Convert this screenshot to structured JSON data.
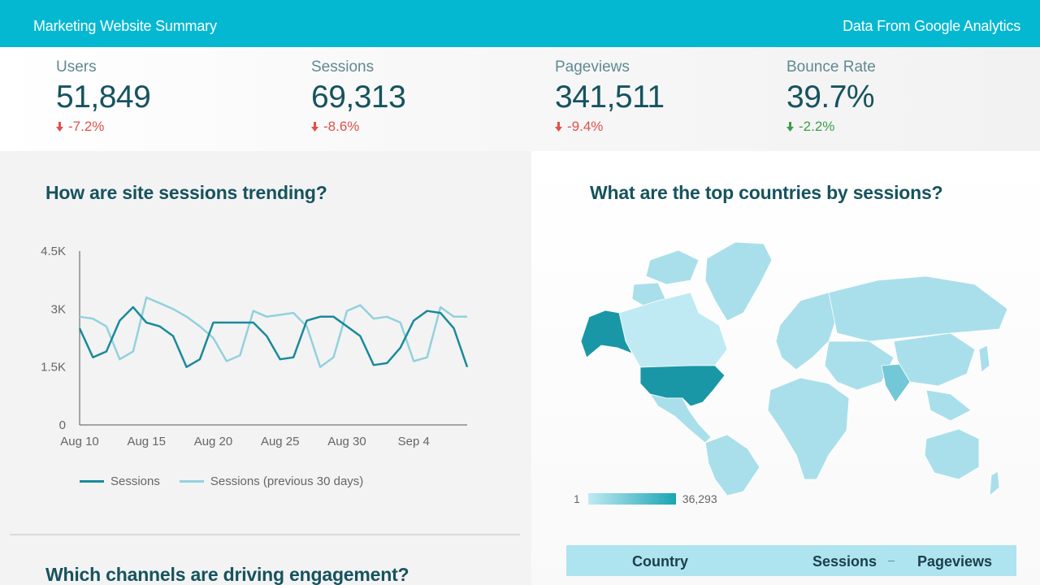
{
  "header": {
    "title": "Marketing Website Summary",
    "source": "Data From Google Analytics"
  },
  "kpis": [
    {
      "label": "Users",
      "value": "51,849",
      "delta": "-7.2%",
      "direction": "down",
      "color": "#e0504a"
    },
    {
      "label": "Sessions",
      "value": "69,313",
      "delta": "-8.6%",
      "direction": "down",
      "color": "#e0504a"
    },
    {
      "label": "Pageviews",
      "value": "341,511",
      "delta": "-9.4%",
      "direction": "down",
      "color": "#e0504a"
    },
    {
      "label": "Bounce Rate",
      "value": "39.7%",
      "delta": "-2.2%",
      "direction": "down",
      "color": "#3d9c4a"
    }
  ],
  "sessions_section": {
    "title": "How are site sessions trending?"
  },
  "countries_section": {
    "title": "What are the top countries by sessions?"
  },
  "channels_section": {
    "title": "Which channels are driving engagement?"
  },
  "chart_data": {
    "type": "line",
    "title": "",
    "xlabel": "",
    "ylabel": "",
    "x_ticks": [
      "Aug 10",
      "Aug 15",
      "Aug 20",
      "Aug 25",
      "Aug 30",
      "Sep 4"
    ],
    "y_ticks": [
      "0",
      "1.5K",
      "3K",
      "4.5K"
    ],
    "ylim": [
      0,
      4500
    ],
    "x": [
      "Aug 10",
      "Aug 11",
      "Aug 12",
      "Aug 13",
      "Aug 14",
      "Aug 15",
      "Aug 16",
      "Aug 17",
      "Aug 18",
      "Aug 19",
      "Aug 20",
      "Aug 21",
      "Aug 22",
      "Aug 23",
      "Aug 24",
      "Aug 25",
      "Aug 26",
      "Aug 27",
      "Aug 28",
      "Aug 29",
      "Aug 30",
      "Aug 31",
      "Sep 1",
      "Sep 2",
      "Sep 3",
      "Sep 4",
      "Sep 5",
      "Sep 6",
      "Sep 7",
      "Sep 8"
    ],
    "grid": false,
    "legend": "bottom",
    "series": [
      {
        "name": "Sessions",
        "color": "#1a8a9a",
        "values": [
          2500,
          1750,
          1900,
          2700,
          3050,
          2650,
          2550,
          2300,
          1500,
          1700,
          2650,
          2650,
          2650,
          2650,
          2300,
          1700,
          1750,
          2700,
          2800,
          2800,
          2550,
          2300,
          1550,
          1600,
          2000,
          2700,
          2950,
          2900,
          2500,
          1500
        ]
      },
      {
        "name": "Sessions (previous 30 days)",
        "color": "#93d1dc",
        "values": [
          2800,
          2750,
          2550,
          1700,
          1900,
          3300,
          3150,
          3000,
          2800,
          2550,
          2250,
          1650,
          1800,
          2950,
          2800,
          2850,
          2900,
          2550,
          1500,
          1750,
          2950,
          3100,
          2750,
          2800,
          2650,
          1650,
          1750,
          3050,
          2800,
          2800
        ]
      }
    ]
  },
  "map": {
    "scale_min": "1",
    "scale_max": "36,293",
    "colors": {
      "low": "#bfeaf3",
      "high": "#1aa4b3",
      "land": "#a9dfea",
      "top": "#1a97a6"
    }
  },
  "country_table": {
    "headers": [
      "Country",
      "Sessions",
      "Pageviews"
    ]
  }
}
